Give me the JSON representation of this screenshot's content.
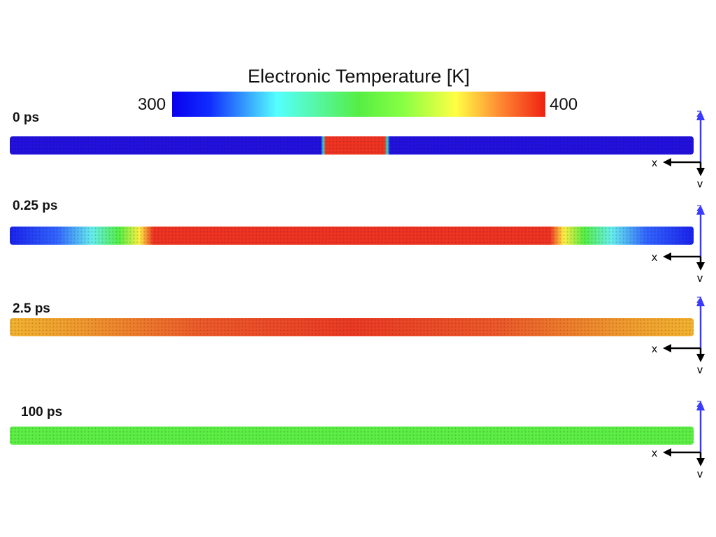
{
  "colorbar": {
    "title": "Electronic Temperature [K]",
    "min_label": "300",
    "max_label": "400",
    "stops": [
      {
        "pos": 0.0,
        "color": "#0a00ee"
      },
      {
        "pos": 0.1,
        "color": "#0f2cff"
      },
      {
        "pos": 0.28,
        "color": "#55ffff"
      },
      {
        "pos": 0.5,
        "color": "#55ee44"
      },
      {
        "pos": 0.62,
        "color": "#88ff44"
      },
      {
        "pos": 0.76,
        "color": "#ffff44"
      },
      {
        "pos": 0.88,
        "color": "#ff8833"
      },
      {
        "pos": 1.0,
        "color": "#ee2211"
      }
    ]
  },
  "panels": [
    {
      "time_label": "0 ps",
      "stops": [
        {
          "pos": 0.0,
          "color": "#2211dd"
        },
        {
          "pos": 0.455,
          "color": "#2211dd"
        },
        {
          "pos": 0.458,
          "color": "#33ddcc"
        },
        {
          "pos": 0.462,
          "color": "#ee3322"
        },
        {
          "pos": 0.548,
          "color": "#ee3322"
        },
        {
          "pos": 0.552,
          "color": "#33ddcc"
        },
        {
          "pos": 0.556,
          "color": "#2211dd"
        },
        {
          "pos": 1.0,
          "color": "#2211dd"
        }
      ]
    },
    {
      "time_label": "0.25 ps",
      "stops": [
        {
          "pos": 0.0,
          "color": "#1a22ee"
        },
        {
          "pos": 0.07,
          "color": "#3366ff"
        },
        {
          "pos": 0.12,
          "color": "#66eeee"
        },
        {
          "pos": 0.16,
          "color": "#55ee44"
        },
        {
          "pos": 0.19,
          "color": "#ffee44"
        },
        {
          "pos": 0.21,
          "color": "#ee3322"
        },
        {
          "pos": 0.79,
          "color": "#ee3322"
        },
        {
          "pos": 0.81,
          "color": "#ffee44"
        },
        {
          "pos": 0.84,
          "color": "#55ee44"
        },
        {
          "pos": 0.88,
          "color": "#66eeee"
        },
        {
          "pos": 0.93,
          "color": "#3366ff"
        },
        {
          "pos": 1.0,
          "color": "#1a22ee"
        }
      ]
    },
    {
      "time_label": "2.5 ps",
      "stops": [
        {
          "pos": 0.0,
          "color": "#f2b230"
        },
        {
          "pos": 0.1,
          "color": "#ef9a2e"
        },
        {
          "pos": 0.28,
          "color": "#ec5a2a"
        },
        {
          "pos": 0.5,
          "color": "#ea3a24"
        },
        {
          "pos": 0.72,
          "color": "#ec5a2a"
        },
        {
          "pos": 0.9,
          "color": "#ef9a2e"
        },
        {
          "pos": 1.0,
          "color": "#f2b230"
        }
      ]
    },
    {
      "time_label": "100 ps",
      "stops": [
        {
          "pos": 0.0,
          "color": "#5cee44"
        },
        {
          "pos": 1.0,
          "color": "#5cee44"
        }
      ]
    }
  ],
  "axes": {
    "z_label": "z",
    "x_label": "x",
    "y_label": "y",
    "z_color": "#3b3bff",
    "xy_color": "#000000"
  }
}
